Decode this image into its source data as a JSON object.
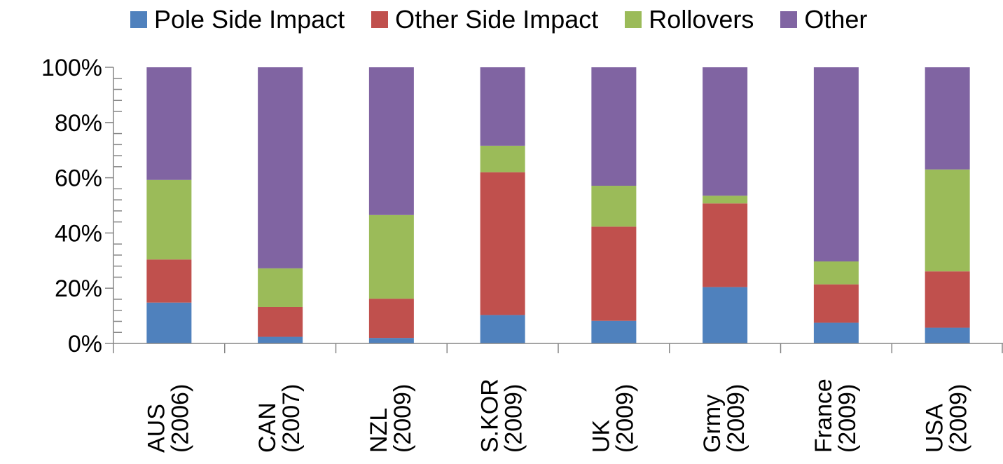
{
  "chart_data": {
    "type": "bar",
    "stacked": true,
    "percent_scale": true,
    "categories": [
      [
        "AUS",
        "(2006)"
      ],
      [
        "CAN",
        "(2007)"
      ],
      [
        "NZL",
        "(2009)"
      ],
      [
        "S.KOR",
        "(2009)"
      ],
      [
        "UK",
        "(2009)"
      ],
      [
        "Grmy",
        "(2009)"
      ],
      [
        "France",
        "(2009)"
      ],
      [
        "USA",
        "(2009)"
      ]
    ],
    "series": [
      {
        "name": "Pole Side Impact",
        "color": "#4F81BD",
        "values": [
          14.8,
          2.4,
          2.0,
          10.3,
          8.2,
          20.4,
          7.5,
          5.7
        ]
      },
      {
        "name": "Other Side Impact",
        "color": "#C0504D",
        "values": [
          15.6,
          10.8,
          14.2,
          51.7,
          34.1,
          30.3,
          13.9,
          20.4
        ]
      },
      {
        "name": "Rollovers",
        "color": "#9BBB59",
        "values": [
          28.8,
          14.0,
          30.3,
          9.6,
          14.8,
          2.8,
          8.3,
          36.9
        ]
      },
      {
        "name": "Other",
        "color": "#8064A2",
        "values": [
          40.8,
          72.8,
          53.5,
          28.4,
          42.9,
          46.5,
          70.3,
          37.0
        ]
      }
    ],
    "ylim": [
      0,
      100
    ],
    "yticks": [
      "0%",
      "20%",
      "40%",
      "60%",
      "80%",
      "100%"
    ],
    "grid": false,
    "legend_position": "top",
    "title": "",
    "xlabel": "",
    "ylabel": ""
  }
}
